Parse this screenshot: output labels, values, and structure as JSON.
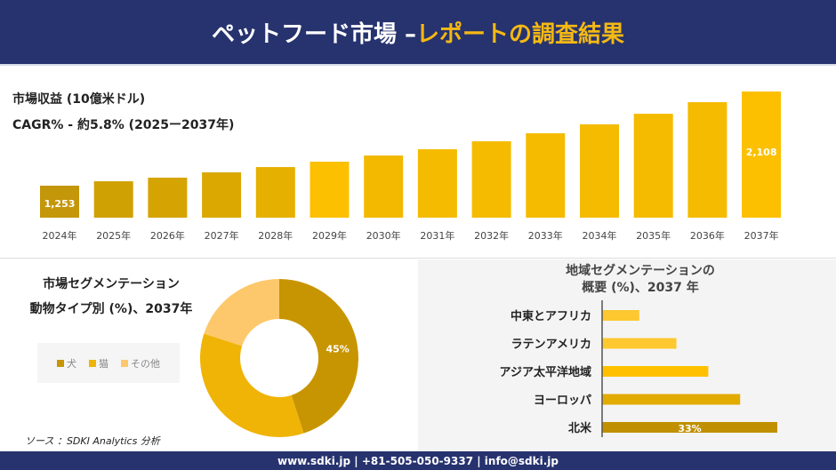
{
  "header": {
    "title_main": "ペットフード市場 –",
    "title_accent": "レポートの調査結果"
  },
  "revenue": {
    "label": "市場収益 (10億米ドル)",
    "cagr": "CAGR% - 約5.8% (2025ー2037年)"
  },
  "chart_data": [
    {
      "type": "bar",
      "title": "市場収益 (10億米ドル)",
      "categories": [
        "2024年",
        "2025年",
        "2026年",
        "2027年",
        "2028年",
        "2029年",
        "2030年",
        "2031年",
        "2032年",
        "2033年",
        "2034年",
        "2035年",
        "2036年",
        "2037年"
      ],
      "values": [
        1253,
        1293,
        1326,
        1374,
        1422,
        1471,
        1527,
        1584,
        1656,
        1729,
        1810,
        1906,
        2011,
        2108
      ],
      "data_labels": {
        "0": "1,253",
        "13": "2,108"
      },
      "colors": [
        "#c4960a",
        "#d0a103",
        "#d6a402",
        "#daa800",
        "#e5b000",
        "#fcc000",
        "#f2b900",
        "#f5bb00",
        "#f5bb00",
        "#f5bb00",
        "#f5bb00",
        "#f5bb00",
        "#f5bb00",
        "#fcc000"
      ]
    },
    {
      "type": "pie",
      "title": "市場セグメンテーション 動物タイプ別 (%)、2037年",
      "categories": [
        "犬",
        "猫",
        "その他"
      ],
      "values": [
        45,
        35,
        20
      ],
      "data_labels": {
        "0": "45%"
      },
      "colors": [
        "#c89502",
        "#efb406",
        "#fdc86b"
      ]
    },
    {
      "type": "bar",
      "orientation": "horizontal",
      "title": "地域セグメンテーションの 概要 (%)、2037 年",
      "categories": [
        "中東とアフリカ",
        "ラテンアメリカ",
        "アジア太平洋地域",
        "ヨーロッパ",
        "北米"
      ],
      "values": [
        7,
        14,
        20,
        26,
        33
      ],
      "data_labels": {
        "4": "33%"
      },
      "colors": [
        "#fdc830",
        "#fdc830",
        "#ffc000",
        "#e2ab00",
        "#c09000"
      ]
    }
  ],
  "segment": {
    "title1": "市場セグメンテーション",
    "title2": "動物タイプ別 (%)、2037年"
  },
  "region": {
    "title1": "地域セグメンテーションの",
    "title2": "概要 (%)、2037 年"
  },
  "source": "ソース ：SDKI Analytics 分析",
  "footer": "www.sdki.jp | +81-505-050-9337 | info@sdki.jp"
}
